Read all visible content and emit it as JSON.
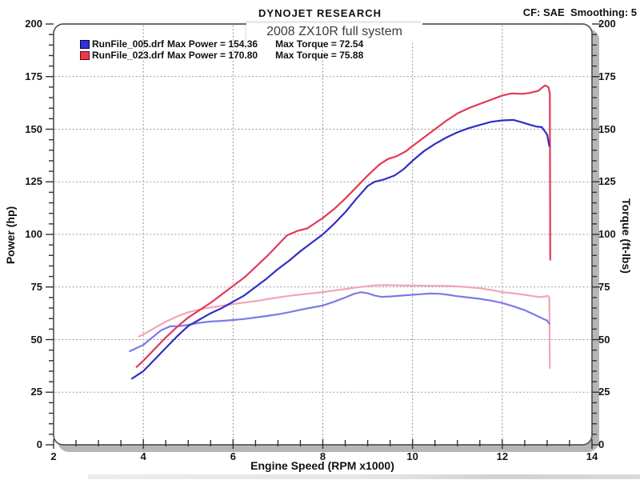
{
  "header": {
    "brand": "DYNOJET RESEARCH",
    "correction": "CF: SAE  Smoothing: 5"
  },
  "chart_title": "2008 ZX10R full system",
  "legend": [
    {
      "file": "RunFile_005.drf",
      "power": "Max Power = 154.36",
      "torque": "Max Torque = 72.54",
      "color": "#3232cc",
      "border": "#000066"
    },
    {
      "file": "RunFile_023.drf",
      "power": "Max Power = 170.80",
      "torque": "Max Torque = 75.88",
      "color": "#e83c4c",
      "border": "#7a000f"
    }
  ],
  "axes": {
    "x_label": "Engine Speed (RPM x1000)",
    "y_left_label": "Power (hp)",
    "y_right_label": "Torque (ft-lbs)",
    "x_ticks": [
      "2",
      "4",
      "6",
      "8",
      "10",
      "12",
      "14"
    ],
    "y_ticks": [
      "0",
      "25",
      "50",
      "75",
      "100",
      "125",
      "150",
      "175",
      "200"
    ]
  },
  "colors": {
    "grid": "#9a9aab",
    "frame": "#58585a",
    "shadow": "#b6b6b6",
    "plot_bg": "#ffffff"
  },
  "chart_data": {
    "type": "line",
    "title": "2008 ZX10R full system",
    "xlabel": "Engine Speed (RPM x1000)",
    "ylabel_left": "Power (hp)",
    "ylabel_right": "Torque (ft-lbs)",
    "xlim": [
      2,
      14
    ],
    "ylim": [
      0,
      200
    ],
    "x_major_step": 2,
    "x_minor_step": 0.5,
    "y_major_step": 25,
    "y_minor_step": 5,
    "grid": "dotted-at-major",
    "legend_position": "top-left",
    "series": [
      {
        "name": "runfile-023-torque",
        "label": "RunFile_023.drf Torque (ft-lbs)",
        "color": "#f2a6b4",
        "max": 75.88,
        "points": [
          [
            3.9,
            51.5
          ],
          [
            4,
            52.5
          ],
          [
            4.25,
            55.5
          ],
          [
            4.5,
            58.5
          ],
          [
            4.75,
            61
          ],
          [
            5,
            63
          ],
          [
            5.25,
            64.3
          ],
          [
            5.5,
            65.3
          ],
          [
            5.75,
            66.1
          ],
          [
            6,
            66.9
          ],
          [
            6.25,
            67.6
          ],
          [
            6.5,
            68.3
          ],
          [
            6.75,
            69.2
          ],
          [
            7,
            70
          ],
          [
            7.25,
            70.8
          ],
          [
            7.5,
            71.4
          ],
          [
            7.75,
            72
          ],
          [
            8,
            72.6
          ],
          [
            8.25,
            73.3
          ],
          [
            8.5,
            74
          ],
          [
            8.75,
            74.8
          ],
          [
            9,
            75.4
          ],
          [
            9.2,
            75.8
          ],
          [
            9.4,
            75.9
          ],
          [
            9.6,
            75.8
          ],
          [
            9.8,
            75.7
          ],
          [
            10,
            75.7
          ],
          [
            10.25,
            75.6
          ],
          [
            10.5,
            75.6
          ],
          [
            10.75,
            75.5
          ],
          [
            11,
            75.3
          ],
          [
            11.25,
            74.9
          ],
          [
            11.5,
            74.4
          ],
          [
            11.75,
            73.6
          ],
          [
            12,
            72.6
          ],
          [
            12.25,
            72
          ],
          [
            12.5,
            71.3
          ],
          [
            12.7,
            70.6
          ],
          [
            12.85,
            70.2
          ],
          [
            12.95,
            70.5
          ],
          [
            13.02,
            70.8
          ],
          [
            13.05,
            70
          ],
          [
            13.06,
            36.5
          ]
        ]
      },
      {
        "name": "runfile-005-torque",
        "label": "RunFile_005.drf Torque (ft-lbs)",
        "color": "#7b7be8",
        "max": 72.54,
        "points": [
          [
            3.7,
            44.5
          ],
          [
            4,
            47.5
          ],
          [
            4.2,
            51
          ],
          [
            4.4,
            54.5
          ],
          [
            4.6,
            56.3
          ],
          [
            4.8,
            56.4
          ],
          [
            5,
            57
          ],
          [
            5.25,
            58
          ],
          [
            5.5,
            58.6
          ],
          [
            5.75,
            58.9
          ],
          [
            6,
            59.3
          ],
          [
            6.25,
            59.8
          ],
          [
            6.5,
            60.5
          ],
          [
            6.75,
            61.2
          ],
          [
            7,
            62
          ],
          [
            7.25,
            63
          ],
          [
            7.5,
            64.2
          ],
          [
            7.75,
            65.2
          ],
          [
            8,
            66.2
          ],
          [
            8.25,
            68
          ],
          [
            8.5,
            70
          ],
          [
            8.7,
            71.8
          ],
          [
            8.85,
            72.5
          ],
          [
            9,
            72
          ],
          [
            9.15,
            71
          ],
          [
            9.3,
            70.3
          ],
          [
            9.5,
            70.5
          ],
          [
            9.75,
            70.9
          ],
          [
            10,
            71.3
          ],
          [
            10.2,
            71.6
          ],
          [
            10.4,
            71.9
          ],
          [
            10.6,
            71.8
          ],
          [
            10.8,
            71.3
          ],
          [
            11,
            70.6
          ],
          [
            11.25,
            70
          ],
          [
            11.5,
            69.4
          ],
          [
            11.75,
            68.5
          ],
          [
            12,
            67.4
          ],
          [
            12.25,
            65.8
          ],
          [
            12.5,
            64
          ],
          [
            12.7,
            62
          ],
          [
            12.85,
            60.5
          ],
          [
            13,
            59
          ],
          [
            13.05,
            57.5
          ]
        ]
      },
      {
        "name": "runfile-023-power",
        "label": "RunFile_023.drf Power (hp)",
        "color": "#e23a55",
        "max": 170.8,
        "points": [
          [
            3.85,
            37
          ],
          [
            4,
            40
          ],
          [
            4.25,
            45.5
          ],
          [
            4.5,
            51
          ],
          [
            4.75,
            56
          ],
          [
            5,
            60.5
          ],
          [
            5.25,
            64
          ],
          [
            5.5,
            67.5
          ],
          [
            5.75,
            71.5
          ],
          [
            6,
            75.5
          ],
          [
            6.25,
            79.5
          ],
          [
            6.5,
            84.5
          ],
          [
            6.75,
            89.5
          ],
          [
            7,
            95
          ],
          [
            7.2,
            99.5
          ],
          [
            7.45,
            101.8
          ],
          [
            7.65,
            102.8
          ],
          [
            8,
            107.8
          ],
          [
            8.25,
            112
          ],
          [
            8.5,
            117
          ],
          [
            8.75,
            122.5
          ],
          [
            9,
            128
          ],
          [
            9.25,
            133
          ],
          [
            9.45,
            135.8
          ],
          [
            9.65,
            137.2
          ],
          [
            9.85,
            139.5
          ],
          [
            10,
            142
          ],
          [
            10.25,
            146
          ],
          [
            10.5,
            150
          ],
          [
            10.75,
            154
          ],
          [
            11,
            157.5
          ],
          [
            11.25,
            160
          ],
          [
            11.5,
            162
          ],
          [
            11.75,
            164
          ],
          [
            12,
            166
          ],
          [
            12.2,
            167
          ],
          [
            12.45,
            166.8
          ],
          [
            12.6,
            167.2
          ],
          [
            12.8,
            168.2
          ],
          [
            12.95,
            170.8
          ],
          [
            13.03,
            170
          ],
          [
            13.06,
            167
          ],
          [
            13.07,
            88
          ]
        ]
      },
      {
        "name": "runfile-005-power",
        "label": "RunFile_005.drf Power (hp)",
        "color": "#2f2fc4",
        "max": 154.36,
        "points": [
          [
            3.75,
            31.5
          ],
          [
            4,
            35
          ],
          [
            4.25,
            40.5
          ],
          [
            4.5,
            46
          ],
          [
            4.75,
            51.5
          ],
          [
            5,
            56.5
          ],
          [
            5.25,
            59.5
          ],
          [
            5.5,
            62.5
          ],
          [
            5.75,
            65
          ],
          [
            6,
            68
          ],
          [
            6.25,
            71
          ],
          [
            6.5,
            75
          ],
          [
            6.75,
            79
          ],
          [
            7,
            83.5
          ],
          [
            7.25,
            87.5
          ],
          [
            7.5,
            92
          ],
          [
            7.75,
            96
          ],
          [
            8,
            100
          ],
          [
            8.25,
            105
          ],
          [
            8.5,
            110.5
          ],
          [
            8.75,
            117
          ],
          [
            9,
            123
          ],
          [
            9.15,
            125
          ],
          [
            9.35,
            126
          ],
          [
            9.6,
            128
          ],
          [
            9.8,
            131
          ],
          [
            10,
            135
          ],
          [
            10.25,
            139.5
          ],
          [
            10.5,
            143
          ],
          [
            10.75,
            146
          ],
          [
            11,
            148.5
          ],
          [
            11.25,
            150.5
          ],
          [
            11.5,
            152
          ],
          [
            11.75,
            153.5
          ],
          [
            12,
            154.2
          ],
          [
            12.25,
            154.4
          ],
          [
            12.45,
            153.2
          ],
          [
            12.6,
            152.2
          ],
          [
            12.75,
            151.3
          ],
          [
            12.88,
            151
          ],
          [
            13,
            147.5
          ],
          [
            13.05,
            142
          ]
        ]
      }
    ]
  }
}
